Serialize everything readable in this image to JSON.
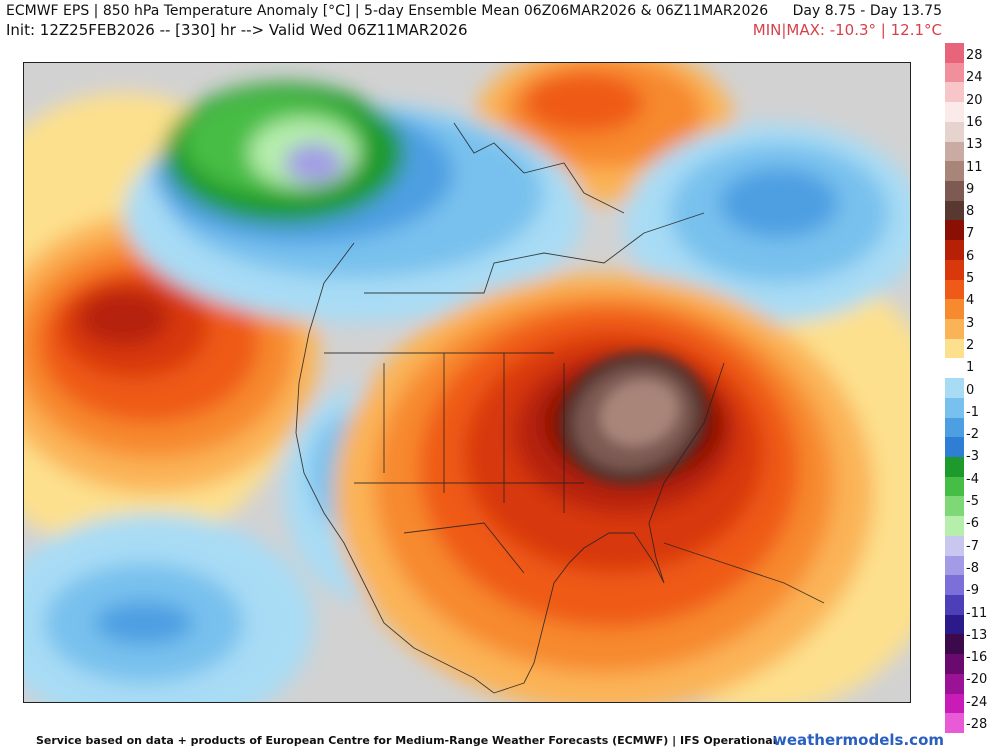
{
  "header": {
    "title": "ECMWF EPS | 850 hPa Temperature Anomaly [°C] | 5-day Ensemble Mean 06Z06MAR2026 & 06Z11MAR2026",
    "range": "Day 8.75 - Day 13.75",
    "init": "Init: 12Z25FEB2026 -- [330] hr --> Valid Wed 06Z11MAR2026",
    "minmax": "MIN|MAX: -10.3° | 12.1°C"
  },
  "legend": {
    "labels": [
      "28",
      "24",
      "20",
      "16",
      "13",
      "11",
      "9",
      "8",
      "7",
      "6",
      "5",
      "4",
      "3",
      "2",
      "1",
      "0",
      "-1",
      "-2",
      "-3",
      "-4",
      "-5",
      "-6",
      "-7",
      "-8",
      "-9",
      "-11",
      "-13",
      "-16",
      "-20",
      "-24",
      "-28"
    ],
    "colors": [
      "#e8647a",
      "#f28f9c",
      "#f6c6c9",
      "#fbeaea",
      "#e7d3cd",
      "#c9aba4",
      "#a88479",
      "#7d5a52",
      "#5a3832",
      "#8a1005",
      "#b52007",
      "#d8380c",
      "#ef5a18",
      "#f7892e",
      "#fbb357",
      "#fde08d",
      "#ffffff",
      "#a8dcf5",
      "#78c1ee",
      "#4d9fe2",
      "#2f7ed6",
      "#1e9a2c",
      "#46bd44",
      "#7fd876",
      "#b6eeac",
      "#c9c6f0",
      "#a39be6",
      "#7d6fd8",
      "#4d3fb8",
      "#2a1a8a",
      "#3c0a4a",
      "#6a0a6e",
      "#9a1296",
      "#c81bb8",
      "#e85ad6"
    ]
  },
  "footer": {
    "source": "Service based on data + products of European Centre for Medium-Range Weather Forecasts (ECMWF) | IFS Operational",
    "site": "weathermodels.com"
  }
}
